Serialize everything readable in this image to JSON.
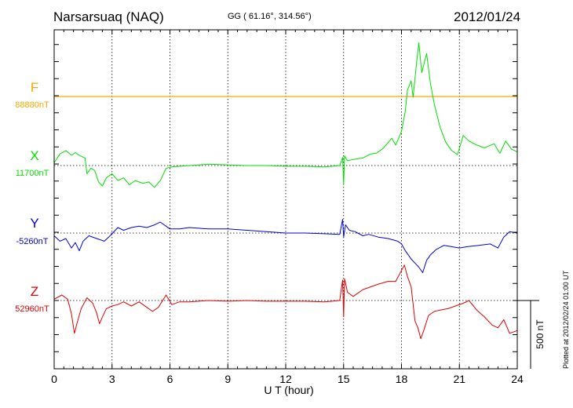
{
  "header": {
    "station": "Narsarsuaq (NAQ)",
    "coords": "GG ( 61.16°, 314.56°)",
    "date": "2012/01/24"
  },
  "plotted_note": "Plotted at 2012/02/24 01:00 UT",
  "chart_data": {
    "type": "line",
    "xlabel": "U T (hour)",
    "xlim": [
      0,
      24
    ],
    "xticks": [
      0,
      3,
      6,
      9,
      12,
      15,
      18,
      21,
      24
    ],
    "x_gridlines": [
      3,
      6,
      9,
      12,
      15,
      18,
      21
    ],
    "scale_bar": {
      "label": "500 nT",
      "value_nT": 500
    },
    "series": [
      {
        "name": "F",
        "baseline_label": "88880nT",
        "baseline_nT": 88880,
        "color": "#f5a800",
        "points": [
          [
            0,
            0
          ],
          [
            24,
            0
          ]
        ]
      },
      {
        "name": "X",
        "baseline_label": "11700nT",
        "baseline_nT": 11700,
        "color": "#00e000",
        "points": [
          [
            0,
            20
          ],
          [
            0.3,
            85
          ],
          [
            0.6,
            110
          ],
          [
            0.9,
            75
          ],
          [
            1.1,
            95
          ],
          [
            1.3,
            75
          ],
          [
            1.6,
            55
          ],
          [
            1.7,
            -60
          ],
          [
            1.9,
            -20
          ],
          [
            2.1,
            -35
          ],
          [
            2.3,
            -120
          ],
          [
            2.5,
            -150
          ],
          [
            2.7,
            -90
          ],
          [
            3,
            -60
          ],
          [
            3.3,
            -110
          ],
          [
            3.6,
            -90
          ],
          [
            3.9,
            -140
          ],
          [
            4.2,
            -110
          ],
          [
            4.6,
            -130
          ],
          [
            4.9,
            -120
          ],
          [
            5.2,
            -160
          ],
          [
            5.5,
            -110
          ],
          [
            5.8,
            -20
          ],
          [
            6.1,
            -10
          ],
          [
            6.5,
            -5
          ],
          [
            7,
            0
          ],
          [
            8,
            10
          ],
          [
            9,
            5
          ],
          [
            10,
            0
          ],
          [
            11,
            0
          ],
          [
            12,
            -5
          ],
          [
            13,
            -5
          ],
          [
            14,
            -10
          ],
          [
            14.8,
            0
          ],
          [
            14.95,
            60
          ],
          [
            15,
            -140
          ],
          [
            15.05,
            70
          ],
          [
            15.2,
            35
          ],
          [
            15.5,
            45
          ],
          [
            16,
            55
          ],
          [
            16.4,
            85
          ],
          [
            16.7,
            90
          ],
          [
            17,
            120
          ],
          [
            17.2,
            150
          ],
          [
            17.5,
            200
          ],
          [
            17.7,
            150
          ],
          [
            18,
            250
          ],
          [
            18.2,
            400
          ],
          [
            18.3,
            550
          ],
          [
            18.5,
            620
          ],
          [
            18.6,
            500
          ],
          [
            18.8,
            780
          ],
          [
            18.9,
            900
          ],
          [
            19.05,
            680
          ],
          [
            19.3,
            820
          ],
          [
            19.5,
            600
          ],
          [
            19.7,
            450
          ],
          [
            20,
            280
          ],
          [
            20.3,
            170
          ],
          [
            20.6,
            110
          ],
          [
            20.9,
            80
          ],
          [
            21.2,
            220
          ],
          [
            21.5,
            180
          ],
          [
            21.9,
            150
          ],
          [
            22.3,
            130
          ],
          [
            22.8,
            160
          ],
          [
            23.1,
            90
          ],
          [
            23.4,
            180
          ],
          [
            23.7,
            120
          ],
          [
            24,
            100
          ]
        ]
      },
      {
        "name": "Y",
        "baseline_label": "-5260nT",
        "baseline_nT": -5260,
        "color": "#0000e0",
        "points": [
          [
            0,
            -20
          ],
          [
            0.3,
            -60
          ],
          [
            0.6,
            -40
          ],
          [
            0.9,
            -110
          ],
          [
            1.1,
            -70
          ],
          [
            1.3,
            -130
          ],
          [
            1.5,
            -60
          ],
          [
            1.8,
            -20
          ],
          [
            2.2,
            -40
          ],
          [
            2.6,
            -60
          ],
          [
            2.9,
            -20
          ],
          [
            3.3,
            40
          ],
          [
            3.6,
            20
          ],
          [
            4,
            40
          ],
          [
            4.4,
            50
          ],
          [
            4.8,
            40
          ],
          [
            5.2,
            60
          ],
          [
            5.5,
            80
          ],
          [
            5.8,
            50
          ],
          [
            6,
            30
          ],
          [
            6.5,
            30
          ],
          [
            7,
            40
          ],
          [
            8,
            30
          ],
          [
            9,
            30
          ],
          [
            10,
            20
          ],
          [
            11,
            10
          ],
          [
            12,
            0
          ],
          [
            13,
            0
          ],
          [
            14,
            -5
          ],
          [
            14.8,
            -10
          ],
          [
            14.95,
            100
          ],
          [
            15,
            -30
          ],
          [
            15.1,
            60
          ],
          [
            15.3,
            20
          ],
          [
            15.6,
            10
          ],
          [
            16,
            -20
          ],
          [
            16.3,
            -10
          ],
          [
            16.8,
            -30
          ],
          [
            17.3,
            -40
          ],
          [
            17.8,
            -60
          ],
          [
            18,
            -80
          ],
          [
            18.2,
            -130
          ],
          [
            18.5,
            -190
          ],
          [
            18.7,
            -220
          ],
          [
            18.9,
            -250
          ],
          [
            19.1,
            -290
          ],
          [
            19.3,
            -200
          ],
          [
            19.5,
            -160
          ],
          [
            19.8,
            -120
          ],
          [
            20.2,
            -90
          ],
          [
            20.6,
            -100
          ],
          [
            21,
            -110
          ],
          [
            21.4,
            -100
          ],
          [
            22,
            -90
          ],
          [
            22.6,
            -80
          ],
          [
            23,
            -110
          ],
          [
            23.3,
            -30
          ],
          [
            23.6,
            10
          ],
          [
            24,
            0
          ]
        ]
      },
      {
        "name": "Z",
        "baseline_label": "52960nT",
        "baseline_nT": 52960,
        "color": "#e00000",
        "points": [
          [
            0,
            10
          ],
          [
            0.4,
            40
          ],
          [
            0.7,
            10
          ],
          [
            0.9,
            -100
          ],
          [
            1.05,
            -240
          ],
          [
            1.2,
            -160
          ],
          [
            1.4,
            -60
          ],
          [
            1.7,
            20
          ],
          [
            2.0,
            -20
          ],
          [
            2.2,
            -90
          ],
          [
            2.35,
            -170
          ],
          [
            2.5,
            -120
          ],
          [
            2.7,
            -60
          ],
          [
            3,
            -40
          ],
          [
            3.3,
            -30
          ],
          [
            3.6,
            -10
          ],
          [
            4,
            -40
          ],
          [
            4.4,
            -10
          ],
          [
            4.8,
            -50
          ],
          [
            5.1,
            -80
          ],
          [
            5.4,
            -50
          ],
          [
            5.8,
            40
          ],
          [
            6.1,
            -30
          ],
          [
            6.5,
            -10
          ],
          [
            7,
            -10
          ],
          [
            8,
            0
          ],
          [
            9,
            -5
          ],
          [
            10,
            0
          ],
          [
            11,
            -5
          ],
          [
            12,
            -5
          ],
          [
            13,
            -5
          ],
          [
            14,
            -10
          ],
          [
            14.8,
            0
          ],
          [
            14.95,
            150
          ],
          [
            15,
            -120
          ],
          [
            15.05,
            160
          ],
          [
            15.2,
            60
          ],
          [
            15.5,
            30
          ],
          [
            16,
            80
          ],
          [
            16.4,
            100
          ],
          [
            16.8,
            120
          ],
          [
            17.3,
            140
          ],
          [
            17.7,
            140
          ],
          [
            18,
            220
          ],
          [
            18.15,
            260
          ],
          [
            18.3,
            180
          ],
          [
            18.5,
            100
          ],
          [
            18.7,
            -150
          ],
          [
            18.85,
            -200
          ],
          [
            19.0,
            -280
          ],
          [
            19.15,
            -220
          ],
          [
            19.4,
            -110
          ],
          [
            19.7,
            -80
          ],
          [
            20,
            -70
          ],
          [
            20.4,
            -60
          ],
          [
            20.8,
            -40
          ],
          [
            21.2,
            -20
          ],
          [
            21.5,
            0
          ],
          [
            21.9,
            -70
          ],
          [
            22.3,
            -120
          ],
          [
            22.7,
            -180
          ],
          [
            23,
            -200
          ],
          [
            23.3,
            -140
          ],
          [
            23.6,
            -240
          ],
          [
            24,
            -220
          ]
        ]
      }
    ]
  }
}
